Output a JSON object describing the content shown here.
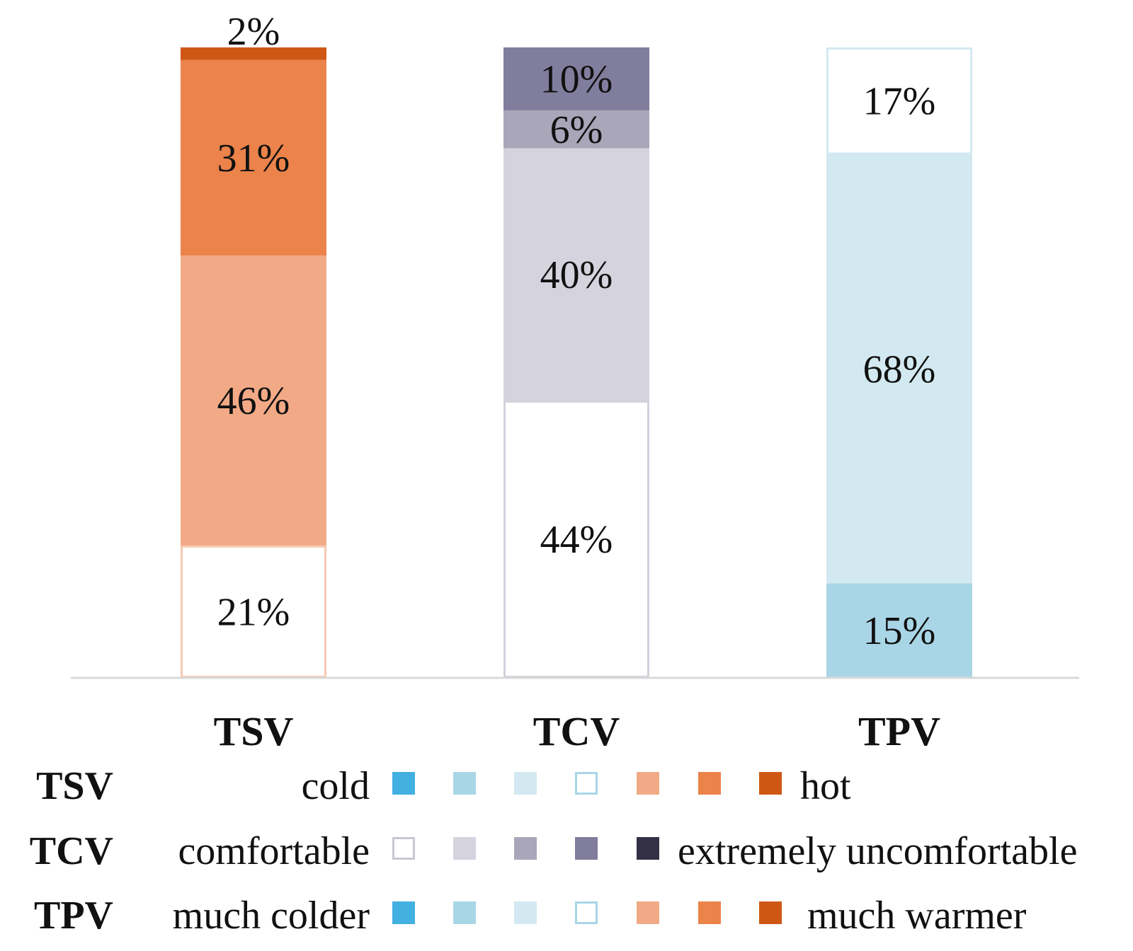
{
  "chart_data": {
    "type": "bar",
    "stacked": true,
    "percent_stacked": true,
    "categories": [
      "TSV",
      "TCV",
      "TPV"
    ],
    "ylim": [
      0,
      100
    ],
    "grid": false,
    "legend_placement": "bottom",
    "series_by_category": [
      {
        "category": "TSV",
        "segments": [
          {
            "label": "21%",
            "value": 21,
            "color": "#ffffff",
            "stroke": "#f6c9b1"
          },
          {
            "label": "46%",
            "value": 46,
            "color": "#f2aa86",
            "stroke": "#f2aa86"
          },
          {
            "label": "31%",
            "value": 31,
            "color": "#eb834a",
            "stroke": "#eb834a"
          },
          {
            "label": "2%",
            "value": 2,
            "color": "#cf5716",
            "stroke": "#cf5716"
          }
        ]
      },
      {
        "category": "TCV",
        "segments": [
          {
            "label": "44%",
            "value": 44,
            "color": "#ffffff",
            "stroke": "#d3d0dc"
          },
          {
            "label": "40%",
            "value": 40,
            "color": "#d5d3de",
            "stroke": "#d5d3de"
          },
          {
            "label": "6%",
            "value": 6,
            "color": "#a9a6ba",
            "stroke": "#a9a6ba"
          },
          {
            "label": "10%",
            "value": 10,
            "color": "#807d9d",
            "stroke": "#807d9d"
          }
        ]
      },
      {
        "category": "TPV",
        "segments": [
          {
            "label": "15%",
            "value": 15,
            "color": "#a9d6e6",
            "stroke": "#a9d6e6"
          },
          {
            "label": "68%",
            "value": 68,
            "color": "#d3e9f1",
            "stroke": "#d3e9f1"
          },
          {
            "label": "17%",
            "value": 17,
            "color": "#ffffff",
            "stroke": "#d3e9f1"
          }
        ]
      }
    ],
    "legend": [
      {
        "title": "TSV",
        "left_text": "cold",
        "right_text": "hot",
        "swatches": [
          {
            "fill": "#42b0e0",
            "stroke": "#42b0e0"
          },
          {
            "fill": "#a9d6e6",
            "stroke": "#a9d6e6"
          },
          {
            "fill": "#d3e9f1",
            "stroke": "#d3e9f1"
          },
          {
            "fill": "#ffffff",
            "stroke": "#a9d6e6"
          },
          {
            "fill": "#f2aa86",
            "stroke": "#f2aa86"
          },
          {
            "fill": "#eb834a",
            "stroke": "#eb834a"
          },
          {
            "fill": "#cf5716",
            "stroke": "#cf5716"
          }
        ]
      },
      {
        "title": "TCV",
        "left_text": "comfortable",
        "right_text": "extremely uncomfortable",
        "swatches": [
          {
            "fill": "#ffffff",
            "stroke": "#c9c6d4"
          },
          {
            "fill": "#d5d3de",
            "stroke": "#d5d3de"
          },
          {
            "fill": "#a9a6ba",
            "stroke": "#a9a6ba"
          },
          {
            "fill": "#807d9d",
            "stroke": "#807d9d"
          },
          {
            "fill": "#343045",
            "stroke": "#343045"
          }
        ]
      },
      {
        "title": "TPV",
        "left_text": "much colder",
        "right_text": "much warmer",
        "swatches": [
          {
            "fill": "#42b0e0",
            "stroke": "#42b0e0"
          },
          {
            "fill": "#a9d6e6",
            "stroke": "#a9d6e6"
          },
          {
            "fill": "#d3e9f1",
            "stroke": "#d3e9f1"
          },
          {
            "fill": "#ffffff",
            "stroke": "#a9d6e6"
          },
          {
            "fill": "#f2aa86",
            "stroke": "#f2aa86"
          },
          {
            "fill": "#eb834a",
            "stroke": "#eb834a"
          },
          {
            "fill": "#cf5716",
            "stroke": "#cf5716"
          }
        ]
      }
    ],
    "axis_color": "#d9d9d9"
  }
}
